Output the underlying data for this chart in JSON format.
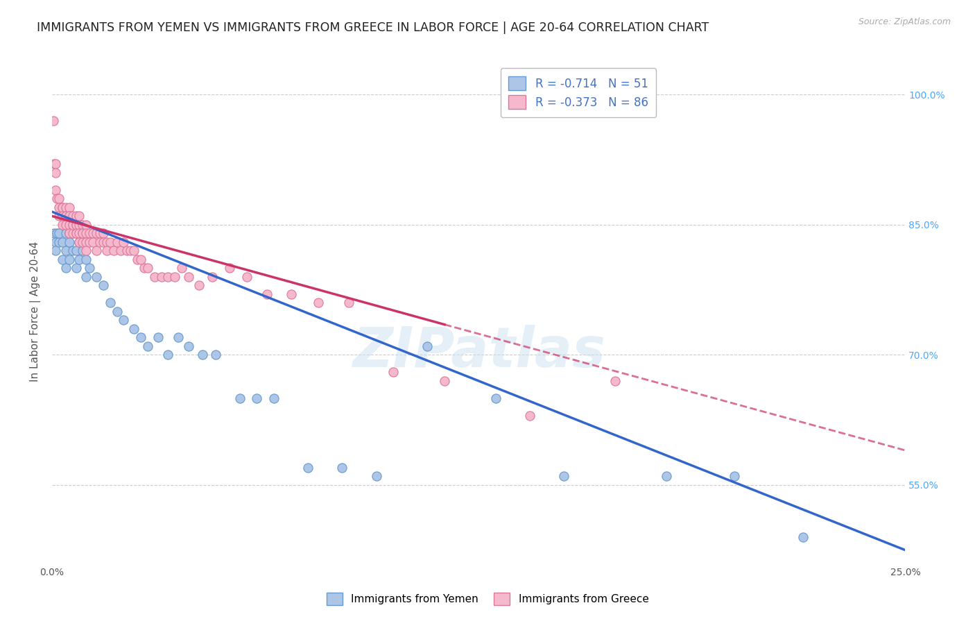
{
  "title": "IMMIGRANTS FROM YEMEN VS IMMIGRANTS FROM GREECE IN LABOR FORCE | AGE 20-64 CORRELATION CHART",
  "source": "Source: ZipAtlas.com",
  "ylabel": "In Labor Force | Age 20-64",
  "y_ticks": [
    0.55,
    0.7,
    0.85,
    1.0
  ],
  "y_tick_labels": [
    "55.0%",
    "70.0%",
    "85.0%",
    "100.0%"
  ],
  "xlim": [
    0.0,
    0.25
  ],
  "ylim": [
    0.46,
    1.04
  ],
  "background_color": "#ffffff",
  "series_yemen": {
    "label": "Immigrants from Yemen",
    "R": -0.714,
    "N": 51,
    "line_color": "#3366cc",
    "scatter_fill": "#adc6e8",
    "scatter_edge": "#6699cc",
    "x": [
      0.0005,
      0.001,
      0.001,
      0.0015,
      0.002,
      0.002,
      0.003,
      0.003,
      0.004,
      0.004,
      0.004,
      0.005,
      0.005,
      0.005,
      0.006,
      0.006,
      0.007,
      0.007,
      0.007,
      0.008,
      0.008,
      0.009,
      0.01,
      0.01,
      0.011,
      0.013,
      0.015,
      0.017,
      0.019,
      0.021,
      0.024,
      0.026,
      0.028,
      0.031,
      0.034,
      0.037,
      0.04,
      0.044,
      0.048,
      0.055,
      0.06,
      0.065,
      0.075,
      0.085,
      0.095,
      0.11,
      0.13,
      0.15,
      0.18,
      0.2,
      0.22
    ],
    "y": [
      0.84,
      0.83,
      0.82,
      0.84,
      0.83,
      0.84,
      0.83,
      0.81,
      0.84,
      0.82,
      0.8,
      0.84,
      0.83,
      0.81,
      0.84,
      0.82,
      0.84,
      0.82,
      0.8,
      0.83,
      0.81,
      0.82,
      0.81,
      0.79,
      0.8,
      0.79,
      0.78,
      0.76,
      0.75,
      0.74,
      0.73,
      0.72,
      0.71,
      0.72,
      0.7,
      0.72,
      0.71,
      0.7,
      0.7,
      0.65,
      0.65,
      0.65,
      0.57,
      0.57,
      0.56,
      0.71,
      0.65,
      0.56,
      0.56,
      0.56,
      0.49
    ]
  },
  "series_greece": {
    "label": "Immigrants from Greece",
    "R": -0.373,
    "N": 86,
    "line_color": "#cc3366",
    "scatter_fill": "#f5b8cc",
    "scatter_edge": "#dd7799",
    "x": [
      0.0003,
      0.0005,
      0.001,
      0.001,
      0.001,
      0.0015,
      0.002,
      0.002,
      0.002,
      0.003,
      0.003,
      0.003,
      0.003,
      0.003,
      0.004,
      0.004,
      0.004,
      0.004,
      0.005,
      0.005,
      0.005,
      0.005,
      0.005,
      0.006,
      0.006,
      0.006,
      0.006,
      0.007,
      0.007,
      0.007,
      0.007,
      0.007,
      0.008,
      0.008,
      0.008,
      0.008,
      0.009,
      0.009,
      0.009,
      0.009,
      0.01,
      0.01,
      0.01,
      0.01,
      0.011,
      0.011,
      0.012,
      0.012,
      0.013,
      0.013,
      0.014,
      0.014,
      0.015,
      0.015,
      0.016,
      0.016,
      0.017,
      0.018,
      0.019,
      0.02,
      0.021,
      0.022,
      0.023,
      0.024,
      0.025,
      0.026,
      0.027,
      0.028,
      0.03,
      0.032,
      0.034,
      0.036,
      0.038,
      0.04,
      0.043,
      0.047,
      0.052,
      0.057,
      0.063,
      0.07,
      0.078,
      0.087,
      0.1,
      0.115,
      0.14,
      0.165
    ],
    "y": [
      0.97,
      0.92,
      0.92,
      0.91,
      0.89,
      0.88,
      0.88,
      0.87,
      0.86,
      0.87,
      0.86,
      0.85,
      0.87,
      0.86,
      0.87,
      0.86,
      0.85,
      0.86,
      0.87,
      0.86,
      0.85,
      0.84,
      0.86,
      0.86,
      0.85,
      0.84,
      0.85,
      0.86,
      0.85,
      0.84,
      0.85,
      0.84,
      0.86,
      0.85,
      0.84,
      0.83,
      0.85,
      0.84,
      0.83,
      0.84,
      0.85,
      0.84,
      0.83,
      0.82,
      0.84,
      0.83,
      0.84,
      0.83,
      0.84,
      0.82,
      0.84,
      0.83,
      0.84,
      0.83,
      0.83,
      0.82,
      0.83,
      0.82,
      0.83,
      0.82,
      0.83,
      0.82,
      0.82,
      0.82,
      0.81,
      0.81,
      0.8,
      0.8,
      0.79,
      0.79,
      0.79,
      0.79,
      0.8,
      0.79,
      0.78,
      0.79,
      0.8,
      0.79,
      0.77,
      0.77,
      0.76,
      0.76,
      0.68,
      0.67,
      0.63,
      0.67
    ]
  },
  "legend_color": "#4472c4",
  "title_fontsize": 12.5,
  "axis_label_fontsize": 11,
  "tick_fontsize": 10,
  "right_tick_color": "#4da6ff",
  "trend_yemen_x0": 0.0,
  "trend_yemen_y0": 0.865,
  "trend_yemen_x1": 0.25,
  "trend_yemen_y1": 0.475,
  "trend_greece_solid_x0": 0.0,
  "trend_greece_solid_y0": 0.86,
  "trend_greece_solid_x1": 0.115,
  "trend_greece_solid_y1": 0.735,
  "trend_greece_dash_x0": 0.115,
  "trend_greece_dash_y0": 0.735,
  "trend_greece_dash_x1": 0.25,
  "trend_greece_dash_y1": 0.59
}
